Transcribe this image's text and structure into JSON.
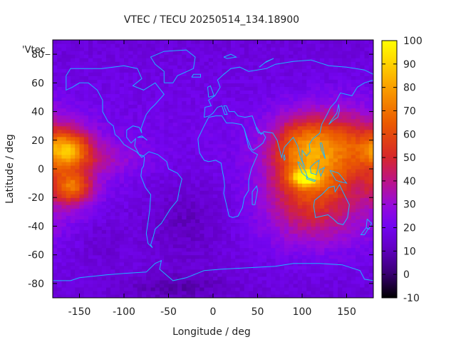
{
  "chart_data": {
    "type": "heatmap",
    "title": "VTEC / TECU 20250514_134.18900",
    "xlabel": "Longitude / deg",
    "ylabel": "Latitude / deg",
    "legend_label": "'Vtec_",
    "xlim": [
      -180,
      180
    ],
    "ylim": [
      -90,
      90
    ],
    "xticks": [
      -150,
      -100,
      -50,
      0,
      50,
      100,
      150
    ],
    "yticks": [
      -80,
      -60,
      -40,
      -20,
      0,
      20,
      40,
      60,
      80
    ],
    "colorbar": {
      "min": -10,
      "max": 100,
      "ticks": [
        -10,
        0,
        10,
        20,
        30,
        40,
        50,
        60,
        70,
        80,
        90,
        100
      ],
      "position": "right"
    },
    "grid": false,
    "background_level": 16,
    "features": [
      {
        "lon": 108,
        "lat": -5,
        "sx": 32,
        "sy": 22,
        "amp": 42
      },
      {
        "lon": 103,
        "lat": -6,
        "sx": 11,
        "sy": 4,
        "amp": 38
      },
      {
        "lon": 125,
        "lat": 20,
        "sx": 38,
        "sy": 14,
        "amp": 22
      },
      {
        "lon": 150,
        "lat": 10,
        "sx": 28,
        "sy": 22,
        "amp": 16
      },
      {
        "lon": 95,
        "lat": 18,
        "sx": 20,
        "sy": 14,
        "amp": 12
      },
      {
        "lon": 120,
        "lat": -38,
        "sx": 45,
        "sy": 16,
        "amp": 10
      },
      {
        "lon": -165,
        "lat": 14,
        "sx": 18,
        "sy": 9,
        "amp": 42
      },
      {
        "lon": -158,
        "lat": -13,
        "sx": 14,
        "sy": 7,
        "amp": 32
      },
      {
        "lon": -160,
        "lat": 0,
        "sx": 25,
        "sy": 22,
        "amp": 20
      },
      {
        "lon": -115,
        "lat": 8,
        "sx": 28,
        "sy": 8,
        "amp": 10
      },
      {
        "lon": -30,
        "lat": -35,
        "sx": 35,
        "sy": 22,
        "amp": -8
      },
      {
        "lon": -130,
        "lat": -45,
        "sx": 25,
        "sy": 15,
        "amp": -5
      },
      {
        "lon": -40,
        "lat": -82,
        "sx": 40,
        "sy": 6,
        "amp": -8
      }
    ]
  }
}
